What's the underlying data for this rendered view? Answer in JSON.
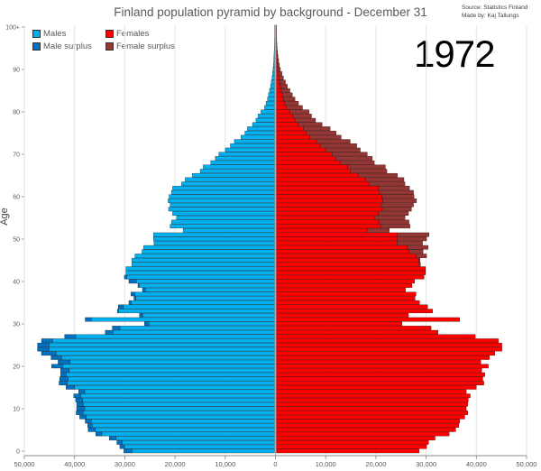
{
  "chart_data": {
    "type": "bar",
    "orientation": "horizontal-pyramid",
    "title": "Finland population pyramid by background - December 31",
    "source": "Source: Statistics Finland",
    "author": "Made by: Kaj Tallungs",
    "year": "1972",
    "ylabel": "Age",
    "xlabel": "",
    "xlim": [
      -50000,
      50000
    ],
    "ylim": [
      0,
      100
    ],
    "grid": true,
    "legend_position": "top-left",
    "legend": {
      "males": "Males",
      "male_surplus": "Male surplus",
      "females": "Females",
      "female_surplus": "Female surplus"
    },
    "colors": {
      "males": "#00B0F0",
      "male_surplus": "#0070C0",
      "females": "#FF0000",
      "female_surplus": "#943634"
    },
    "x_tick_labels": [
      "50,000",
      "40,000",
      "30,000",
      "20,000",
      "10,000",
      "0",
      "10,000",
      "20,000",
      "30,000",
      "40,000",
      "50,000"
    ],
    "y_tick_labels": [
      "0",
      "10",
      "20",
      "30",
      "40",
      "50",
      "60",
      "70",
      "80",
      "90",
      "100+"
    ],
    "categories_note": "ages 0 to 100+",
    "series": [
      {
        "name": "Males",
        "values": [
          30000,
          30800,
          31400,
          32900,
          35600,
          37100,
          37200,
          37700,
          38800,
          39500,
          39400,
          39400,
          39600,
          40000,
          39000,
          41500,
          42900,
          42800,
          42600,
          42600,
          44400,
          43100,
          44500,
          46400,
          47200,
          47200,
          46400,
          41800,
          33700,
          32300,
          25900,
          37700,
          26900,
          31300,
          31100,
          29000,
          28000,
          28600,
          26300,
          27200,
          29000,
          29900,
          29600,
          29600,
          28400,
          28400,
          27800,
          26400,
          26100,
          24000,
          24100,
          24100,
          18200,
          20800,
          20500,
          19500,
          20300,
          21100,
          20800,
          21200,
          21000,
          20500,
          20300,
          18500,
          17800,
          16400,
          14800,
          14200,
          12700,
          11800,
          11100,
          9800,
          8800,
          8000,
          6700,
          5900,
          5400,
          4400,
          3700,
          3300,
          2700,
          2000,
          1700,
          1400,
          1200,
          1000,
          800,
          650,
          500,
          400,
          300,
          220,
          160,
          120,
          80,
          50,
          30,
          20,
          10,
          10,
          10
        ]
      },
      {
        "name": "Females",
        "values": [
          28400,
          29900,
          30300,
          31600,
          34400,
          35700,
          36300,
          36500,
          37500,
          38100,
          37800,
          38100,
          38200,
          38600,
          37800,
          39800,
          41300,
          41100,
          41500,
          40900,
          42200,
          40700,
          42400,
          43500,
          44900,
          44900,
          44200,
          39600,
          32200,
          30800,
          25000,
          36500,
          26300,
          31100,
          30100,
          28500,
          27600,
          27800,
          25700,
          27000,
          27500,
          29400,
          29700,
          29700,
          28700,
          28600,
          29900,
          29200,
          30200,
          29100,
          29900,
          30400,
          22500,
          26600,
          26400,
          25600,
          26300,
          26900,
          27300,
          27900,
          27400,
          27300,
          26500,
          25600,
          25400,
          24100,
          22000,
          21700,
          19500,
          19100,
          18100,
          16700,
          16000,
          14700,
          12900,
          11900,
          10700,
          9100,
          7800,
          7000,
          6500,
          5200,
          4400,
          3700,
          3200,
          2700,
          2200,
          1800,
          1400,
          1100,
          800,
          600,
          450,
          330,
          230,
          150,
          100,
          60,
          40,
          20,
          20
        ]
      }
    ]
  }
}
